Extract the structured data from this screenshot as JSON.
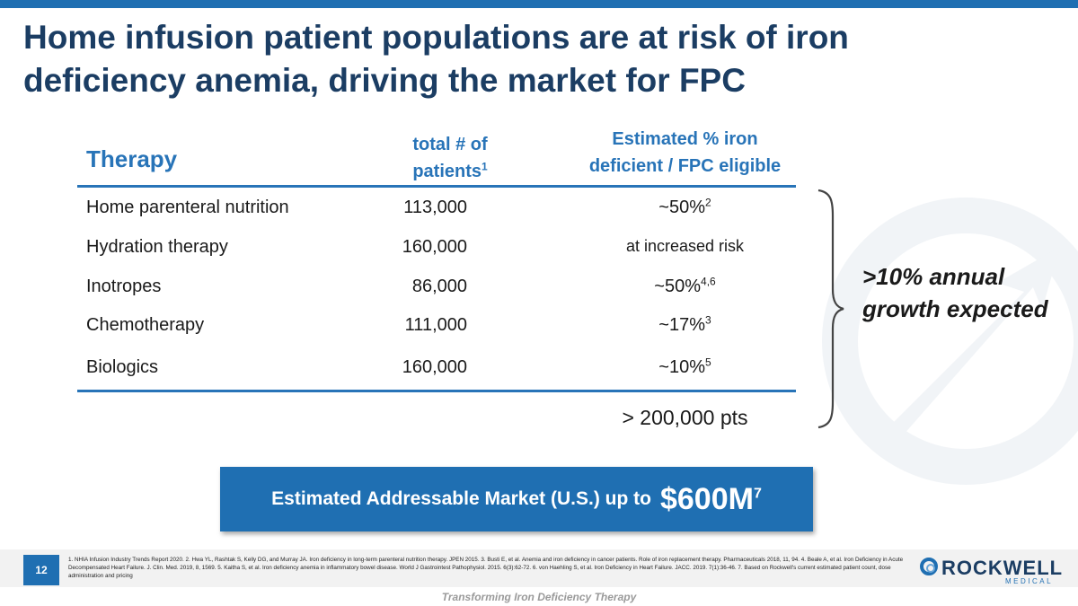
{
  "slide": {
    "title": "Home infusion patient populations are at risk of iron deficiency anemia, driving the market for FPC",
    "page_number": "12",
    "tagline": "Transforming Iron Deficiency Therapy"
  },
  "table": {
    "headers": {
      "therapy": "Therapy",
      "patients": "total # of patients",
      "patients_sup": "1",
      "estimate": "Estimated % iron deficient / FPC eligible"
    },
    "rows": [
      {
        "therapy": "Home parenteral nutrition",
        "patients": "113,000",
        "pct": "~50%",
        "sup": "2"
      },
      {
        "therapy": "Hydration therapy",
        "patients": "160,000",
        "pct": "at increased risk",
        "sup": ""
      },
      {
        "therapy": "Inotropes",
        "patients": "86,000",
        "pct": "~50%",
        "sup": "4,6"
      },
      {
        "therapy": "Chemotherapy",
        "patients": "111,000",
        "pct": "~17%",
        "sup": "3"
      },
      {
        "therapy": "Biologics",
        "patients": "160,000",
        "pct": "~10%",
        "sup": "5"
      }
    ],
    "total": "> 200,000 pts"
  },
  "growth_note": ">10% annual growth expected",
  "market": {
    "label": "Estimated Addressable Market (U.S.) up to",
    "amount": "$600M",
    "amount_sup": "7"
  },
  "footnotes": "1. NHIA Infusion Industry Trends Report 2020. 2. Hwa YL, Rashtak S, Kelly DG, and Murray JA. Iron deficiency in long-term parenteral nutrition therapy. JPEN 2015. 3. Busti E, et al. Anemia and iron deficiency in cancer patients. Role of iron replacement therapy. Pharmaceuticals 2018, 11, 94. 4. Beale A, et al. Iron Deficiency in Acute Decompensated Heart Failure. J. Clin. Med. 2019, 8, 1569. 5. Kaitha S, et al. Iron deficiency anemia in inflammatory bowel disease. World J Gastrointest Pathophysiol. 2015. 6(3):62-72. 6. von Haehling S, et al. Iron Deficiency in Heart Failure. JACC. 2019. 7(1):36-46. 7. Based on Rockwell's current estimated patient count, dose administration and pricing",
  "logo": {
    "name": "ROCKWELL",
    "sub": "MEDICAL"
  },
  "colors": {
    "accent": "#1f6fb2",
    "title": "#1b3d63",
    "header": "#2874b8"
  }
}
